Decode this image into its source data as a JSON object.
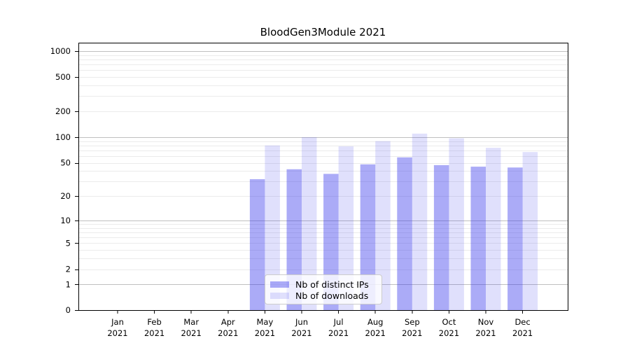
{
  "chart_data": {
    "type": "bar",
    "title": "BloodGen3Module 2021",
    "categories": [
      {
        "month": "Jan",
        "year": "2021"
      },
      {
        "month": "Feb",
        "year": "2021"
      },
      {
        "month": "Mar",
        "year": "2021"
      },
      {
        "month": "Apr",
        "year": "2021"
      },
      {
        "month": "May",
        "year": "2021"
      },
      {
        "month": "Jun",
        "year": "2021"
      },
      {
        "month": "Jul",
        "year": "2021"
      },
      {
        "month": "Aug",
        "year": "2021"
      },
      {
        "month": "Sep",
        "year": "2021"
      },
      {
        "month": "Oct",
        "year": "2021"
      },
      {
        "month": "Nov",
        "year": "2021"
      },
      {
        "month": "Dec",
        "year": "2021"
      }
    ],
    "series": [
      {
        "name": "Nb of distinct IPs",
        "base_color": "#2d2deb",
        "opacity": 0.4,
        "values": [
          0,
          0,
          0,
          0,
          32,
          42,
          37,
          48,
          58,
          47,
          45,
          44
        ]
      },
      {
        "name": "Nb of downloads",
        "base_color": "#2d2deb",
        "opacity": 0.15,
        "values": [
          0,
          0,
          0,
          0,
          80,
          100,
          78,
          90,
          110,
          97,
          75,
          67
        ]
      }
    ],
    "y_axis": {
      "scale": "log1p",
      "tick_values": [
        0,
        1,
        2,
        5,
        10,
        20,
        50,
        100,
        200,
        500,
        1000
      ],
      "tick_labels": [
        "0",
        "1",
        "2",
        "5",
        "10",
        "20",
        "50",
        "100",
        "200",
        "500",
        "1000"
      ],
      "minor_grid_values": [
        2,
        3,
        4,
        5,
        6,
        7,
        8,
        9,
        20,
        30,
        40,
        50,
        60,
        70,
        80,
        90,
        200,
        300,
        400,
        500,
        600,
        700,
        800,
        900
      ],
      "major_grid_values": [
        1,
        10,
        100,
        1000
      ],
      "range_top": 1250
    },
    "grid": "horizontal major + minor, on",
    "legend_position": "inside bottom-center",
    "colors": {
      "major_grid": "#c0c0c0",
      "minor_grid": "#ebebeb",
      "spine": "#000000",
      "tick_label": "#000000",
      "background": "#ffffff"
    }
  }
}
